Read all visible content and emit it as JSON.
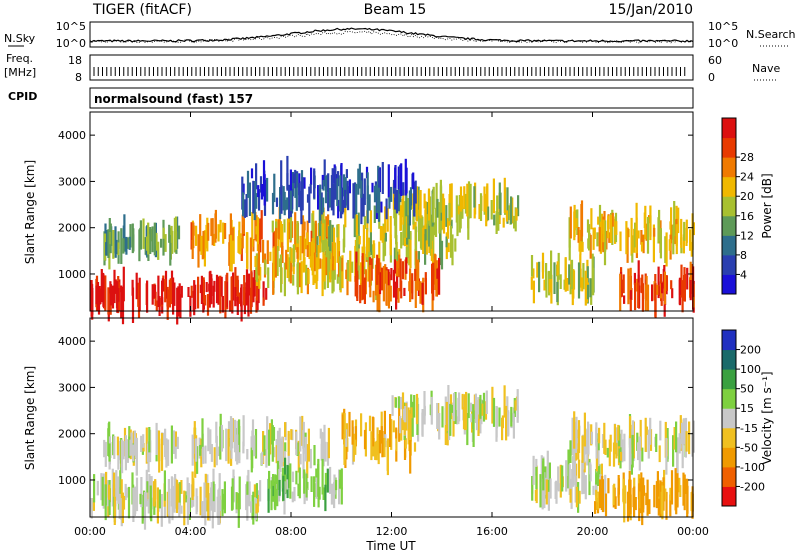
{
  "header": {
    "radar": "TIGER (fitACF)",
    "beam": "Beam 15",
    "date": "15/Jan/2010"
  },
  "strip_nsky": {
    "label": "N.Sky",
    "right_label": "N.Search",
    "left_ticks": [
      "10^5",
      "10^0"
    ],
    "right_ticks": [
      "10^5",
      "10^0"
    ]
  },
  "strip_freq": {
    "label_line1": "Freq.",
    "label_line2": "[MHz]",
    "left_ticks": [
      "18",
      "8"
    ],
    "right_ticks": [
      "60",
      "0"
    ],
    "right_label": "Nave"
  },
  "strip_cpid": {
    "label": "CPID",
    "text": "normalsound (fast) 157"
  },
  "colors": {
    "power": [
      "#1a10d8",
      "#2a3fb0",
      "#2e6e8c",
      "#5e9a58",
      "#a8c030",
      "#f0b800",
      "#f07a00",
      "#e83a00",
      "#dc1010"
    ],
    "velocity": [
      "#e81010",
      "#f06000",
      "#f09a00",
      "#f0c020",
      "#c8c8c8",
      "#7ed040",
      "#3aa040",
      "#1a6a6a",
      "#2030c0"
    ]
  },
  "chart_data": [
    {
      "type": "heatmap",
      "panel": "power",
      "ylabel": "Slant Range [km]",
      "yticks": [
        "1000",
        "2000",
        "3000",
        "4000"
      ],
      "ylim": [
        200,
        4500
      ],
      "xlim": [
        "00:00",
        "24:00"
      ],
      "colorbar": {
        "label": "Power [dB]",
        "ticks": [
          "4",
          "8",
          "12",
          "16",
          "20",
          "24",
          "28"
        ],
        "range": [
          0,
          30
        ]
      },
      "regions": [
        {
          "t0": 0.0,
          "t1": 7.0,
          "r0": 300,
          "r1": 800,
          "value": 28
        },
        {
          "t0": 0.5,
          "t1": 3.5,
          "r0": 1500,
          "r1": 1900,
          "value": 12
        },
        {
          "t0": 4.0,
          "t1": 9.5,
          "r0": 1400,
          "r1": 2100,
          "value": 20
        },
        {
          "t0": 6.5,
          "t1": 11.5,
          "r0": 800,
          "r1": 1400,
          "value": 18
        },
        {
          "t0": 9.0,
          "t1": 14.5,
          "r0": 1300,
          "r1": 2300,
          "value": 16
        },
        {
          "t0": 10.5,
          "t1": 14.0,
          "r0": 500,
          "r1": 1200,
          "value": 24
        },
        {
          "t0": 12.0,
          "t1": 17.0,
          "r0": 2100,
          "r1": 2700,
          "value": 16
        },
        {
          "t0": 17.5,
          "t1": 20.0,
          "r0": 600,
          "r1": 1200,
          "value": 16
        },
        {
          "t0": 19.0,
          "t1": 24.0,
          "r0": 1500,
          "r1": 2200,
          "value": 18
        },
        {
          "t0": 21.0,
          "t1": 24.0,
          "r0": 400,
          "r1": 900,
          "value": 26
        },
        {
          "t0": 6.0,
          "t1": 13.0,
          "r0": 2400,
          "r1": 3200,
          "value": 6
        }
      ]
    },
    {
      "type": "heatmap",
      "panel": "velocity",
      "ylabel": "Slant Range [km]",
      "yticks": [
        "1000",
        "2000",
        "3000",
        "4000"
      ],
      "ylim": [
        200,
        4500
      ],
      "xlim": [
        "00:00",
        "24:00"
      ],
      "xlabel": "Time UT",
      "xticks": [
        "00:00",
        "04:00",
        "08:00",
        "12:00",
        "16:00",
        "20:00",
        "00:00"
      ],
      "colorbar": {
        "label": "Velocity [m s⁻¹]",
        "ticks": [
          "-200",
          "-100",
          "-50",
          "-15",
          "15",
          "50",
          "100",
          "200"
        ],
        "range": [
          -250,
          250
        ]
      },
      "regions": [
        {
          "t0": 0.0,
          "t1": 7.0,
          "r0": 300,
          "r1": 900,
          "value": 0
        },
        {
          "t0": 0.5,
          "t1": 3.5,
          "r0": 1500,
          "r1": 1900,
          "value": 0
        },
        {
          "t0": 4.0,
          "t1": 9.5,
          "r0": 1400,
          "r1": 2100,
          "value": 0
        },
        {
          "t0": 7.0,
          "t1": 10.0,
          "r0": 600,
          "r1": 1100,
          "value": 30
        },
        {
          "t0": 10.0,
          "t1": 13.0,
          "r0": 1500,
          "r1": 2300,
          "value": -40
        },
        {
          "t0": 12.0,
          "t1": 17.0,
          "r0": 2100,
          "r1": 2700,
          "value": 0
        },
        {
          "t0": 17.5,
          "t1": 20.5,
          "r0": 600,
          "r1": 1300,
          "value": 0
        },
        {
          "t0": 19.0,
          "t1": 24.0,
          "r0": 1500,
          "r1": 2100,
          "value": 0
        },
        {
          "t0": 20.0,
          "t1": 24.0,
          "r0": 400,
          "r1": 900,
          "value": -60
        }
      ]
    }
  ]
}
